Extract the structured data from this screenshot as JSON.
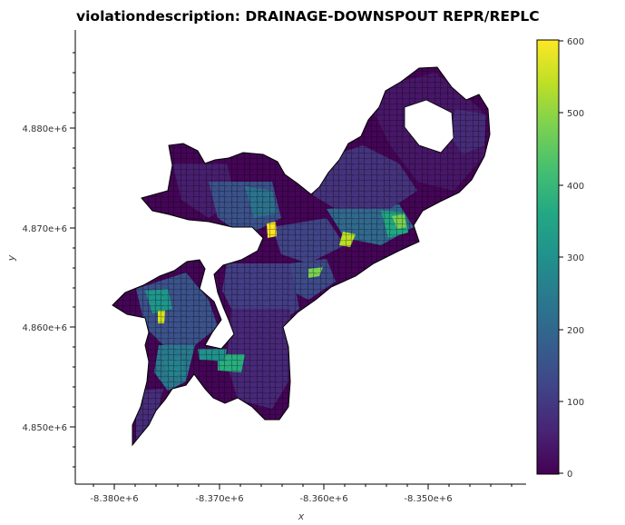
{
  "title": "violationdescription: DRAINAGE-DOWNSPOUT REPR/REPLC",
  "chart_data": {
    "type": "choropleth",
    "xlabel": "x",
    "ylabel": "y",
    "x_ticks": [
      "-8.380e+6",
      "-8.370e+6",
      "-8.360e+6",
      "-8.350e+6"
    ],
    "y_ticks": [
      "4.880e+6",
      "4.870e+6",
      "4.860e+6",
      "4.850e+6"
    ],
    "colorbar": {
      "colormap": "viridis",
      "range": [
        0,
        600
      ],
      "ticks": [
        "0",
        "100",
        "200",
        "300",
        "400",
        "500",
        "600"
      ]
    },
    "colors": {
      "low": "#440154",
      "mid": "#31688e",
      "high": "#35b779",
      "max": "#fde725",
      "edge": "#000000"
    }
  }
}
